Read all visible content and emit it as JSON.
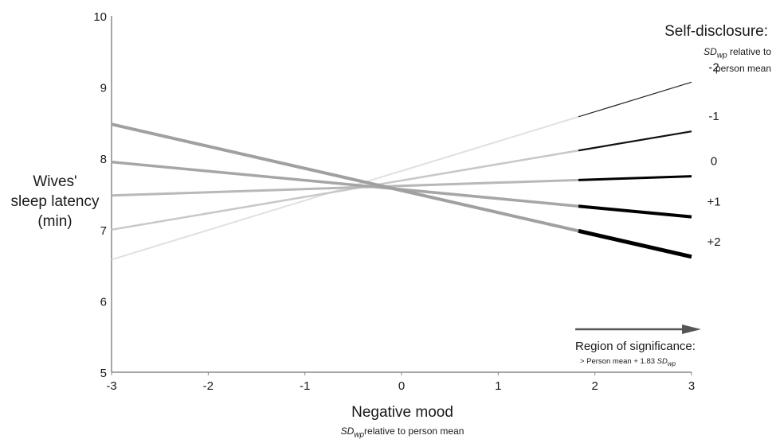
{
  "chart_data": {
    "type": "line",
    "xlabel": "Negative mood",
    "xlabel_sub": {
      "prefix": "SD",
      "subscript": "wp",
      "rest": "relative to person mean"
    },
    "ylabel": "Wives' sleep latency (min)",
    "ylabel_lines": [
      "Wives'",
      "sleep latency",
      "(min)"
    ],
    "xlim": [
      -3,
      3
    ],
    "ylim": [
      5,
      10
    ],
    "x_ticks": [
      "-3",
      "-2",
      "-1",
      "0",
      "1",
      "2",
      "3"
    ],
    "y_ticks": [
      "5",
      "6",
      "7",
      "8",
      "9",
      "10"
    ],
    "grid": false,
    "legend": {
      "title": "Self-disclosure:",
      "subtitle_prefix": "SD",
      "subtitle_subscript": "wp",
      "subtitle_rest": " relative to person mean",
      "placement": "right"
    },
    "series": [
      {
        "name": "-2",
        "x": [
          -3,
          3
        ],
        "y": [
          6.58,
          9.07
        ],
        "color": "#e0e0e0",
        "sig_color": "#222222"
      },
      {
        "name": "-1",
        "x": [
          -3,
          3
        ],
        "y": [
          7.0,
          8.38
        ],
        "color": "#c8c8c8",
        "sig_color": "#111111"
      },
      {
        "name": "0",
        "x": [
          -3,
          3
        ],
        "y": [
          7.48,
          7.75
        ],
        "color": "#b8b8b8",
        "sig_color": "#000000"
      },
      {
        "name": "+1",
        "x": [
          -3,
          3
        ],
        "y": [
          7.95,
          7.18
        ],
        "color": "#a6a6a6",
        "sig_color": "#000000"
      },
      {
        "name": "+2",
        "x": [
          -3,
          3
        ],
        "y": [
          8.48,
          6.62
        ],
        "color": "#a0a0a0",
        "sig_color": "#000000"
      }
    ],
    "region_of_significance": {
      "x_start": 1.83,
      "label": "Region of significance:",
      "sub_prefix": "> Person mean + 1.83 ",
      "sub_sd": "SD",
      "sub_subscript": "wp"
    }
  }
}
